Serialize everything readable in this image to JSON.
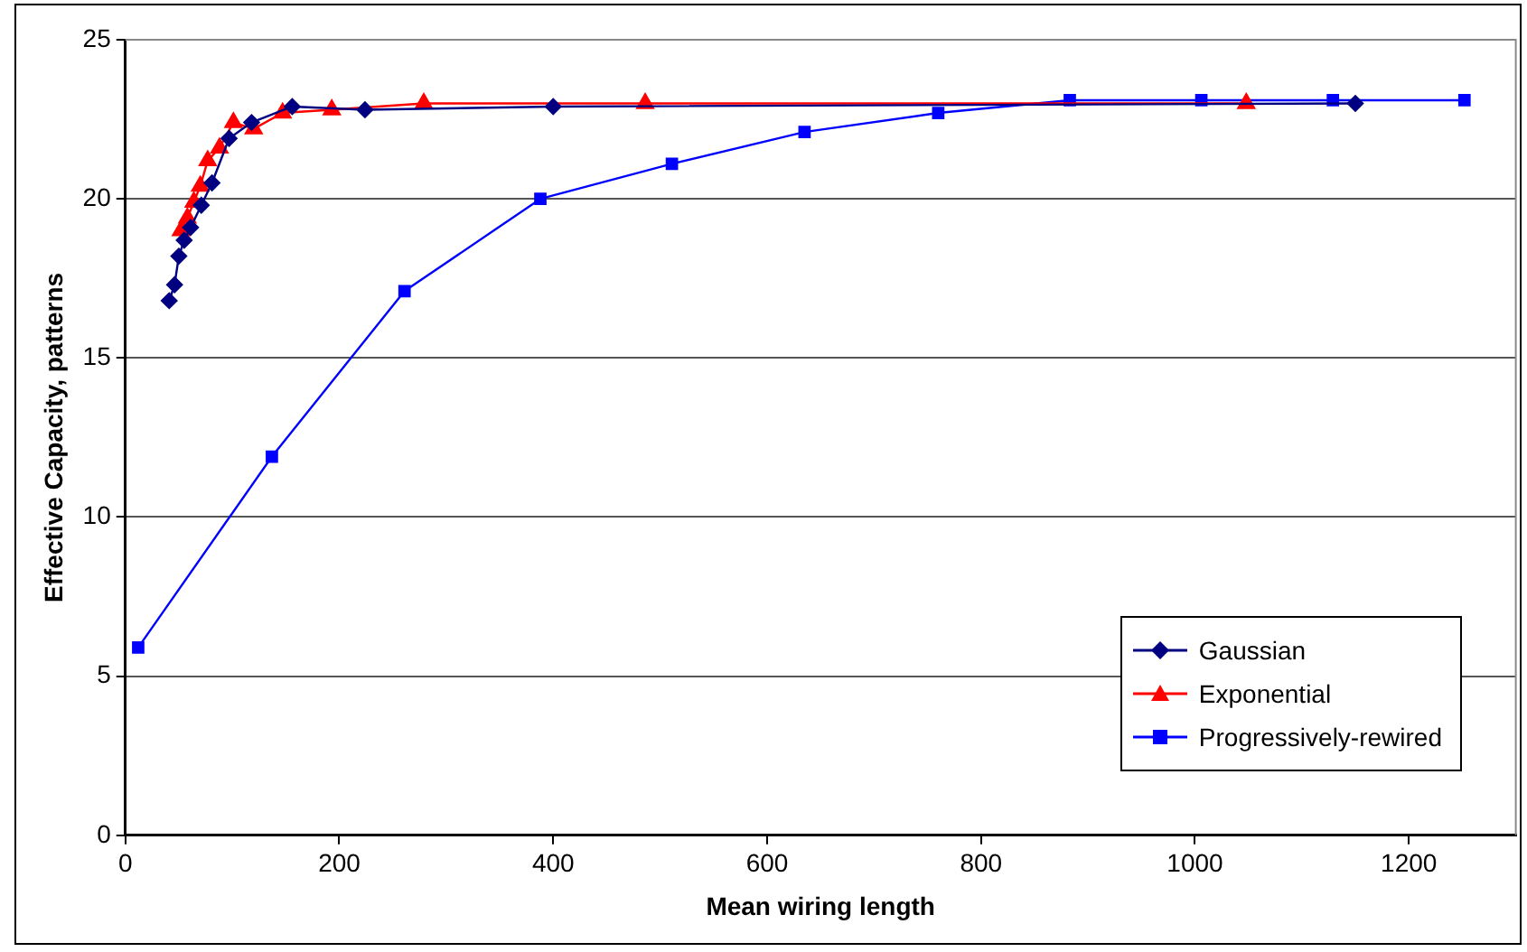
{
  "chart_data": {
    "type": "line",
    "xlabel": "Mean wiring length",
    "ylabel": "Effective Capacity, patterns",
    "xlim": [
      0,
      1300
    ],
    "xticks": [
      0,
      200,
      400,
      600,
      800,
      1000,
      1200
    ],
    "ylim": [
      0,
      25
    ],
    "yticks": [
      0,
      5,
      10,
      15,
      20,
      25
    ],
    "grid": "y",
    "legend": "bottom right",
    "line_style": "solid",
    "series": [
      {
        "name": "Gaussian",
        "color": "#000080",
        "marker": "diamond",
        "x": [
          41,
          46,
          50,
          55,
          61,
          71,
          81,
          97,
          118,
          156,
          224,
          400,
          1150
        ],
        "values": [
          16.8,
          17.3,
          18.2,
          18.7,
          19.1,
          19.8,
          20.5,
          21.9,
          22.4,
          22.9,
          22.8,
          22.9,
          23.0
        ]
      },
      {
        "name": "Exponential",
        "color": "#ff0000",
        "marker": "triangle",
        "x": [
          52,
          58,
          64,
          70,
          77,
          88,
          101,
          120,
          147,
          193,
          279,
          486,
          1048
        ],
        "values": [
          19.0,
          19.4,
          19.9,
          20.4,
          21.2,
          21.6,
          22.4,
          22.2,
          22.7,
          22.8,
          23.0,
          23.0,
          23.0
        ]
      },
      {
        "name": "Progressively-rewired",
        "color": "#0000ff",
        "marker": "square",
        "x": [
          12,
          137,
          261,
          388,
          511,
          635,
          760,
          883,
          1006,
          1129,
          1252
        ],
        "values": [
          5.9,
          11.9,
          17.1,
          20.0,
          21.1,
          22.1,
          22.7,
          23.1,
          23.1,
          23.1,
          23.1
        ]
      }
    ]
  }
}
